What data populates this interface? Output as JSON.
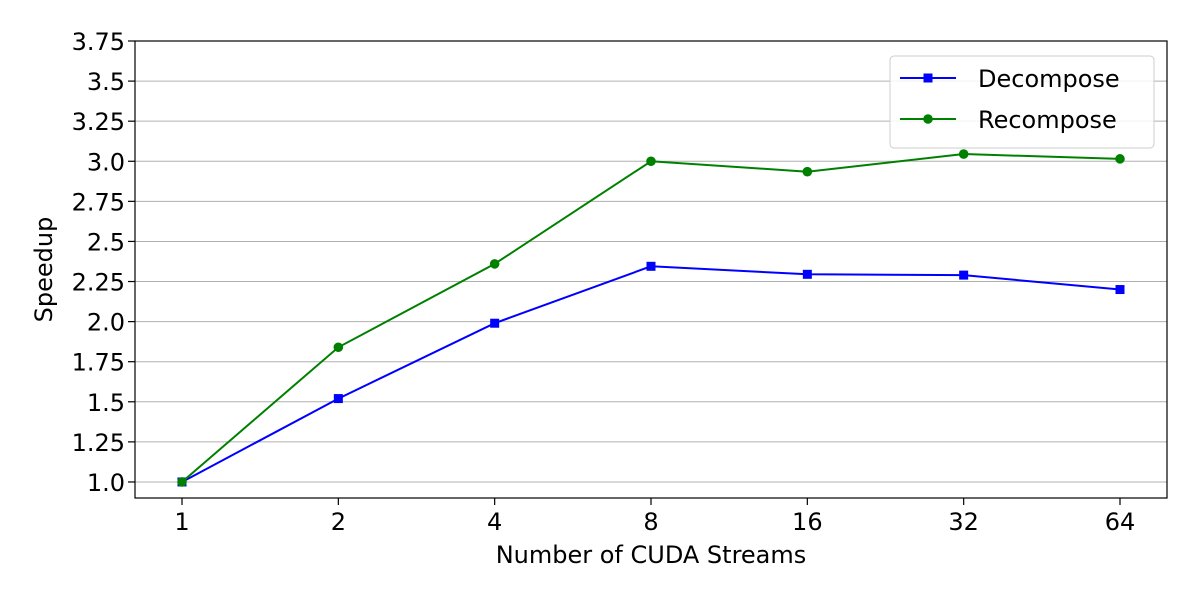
{
  "chart_data": {
    "type": "line",
    "title": "",
    "xlabel": "Number of CUDA Streams",
    "ylabel": "Speedup",
    "categories": [
      "1",
      "2",
      "4",
      "8",
      "16",
      "32",
      "64"
    ],
    "yticks": [
      "1.0",
      "1.25",
      "1.5",
      "1.75",
      "2.0",
      "2.25",
      "2.5",
      "2.75",
      "3.0",
      "3.25",
      "3.5",
      "3.75"
    ],
    "ylim": [
      0.9,
      3.75
    ],
    "grid": "horizontal",
    "legend_position": "top-right",
    "series": [
      {
        "name": "Decompose",
        "color": "#0000ff",
        "marker": "square",
        "values": [
          1.0,
          1.52,
          1.99,
          2.345,
          2.295,
          2.29,
          2.2
        ]
      },
      {
        "name": "Recompose",
        "color": "#008000",
        "marker": "circle",
        "values": [
          1.0,
          1.84,
          2.36,
          3.0,
          2.935,
          3.045,
          3.015
        ]
      }
    ]
  }
}
